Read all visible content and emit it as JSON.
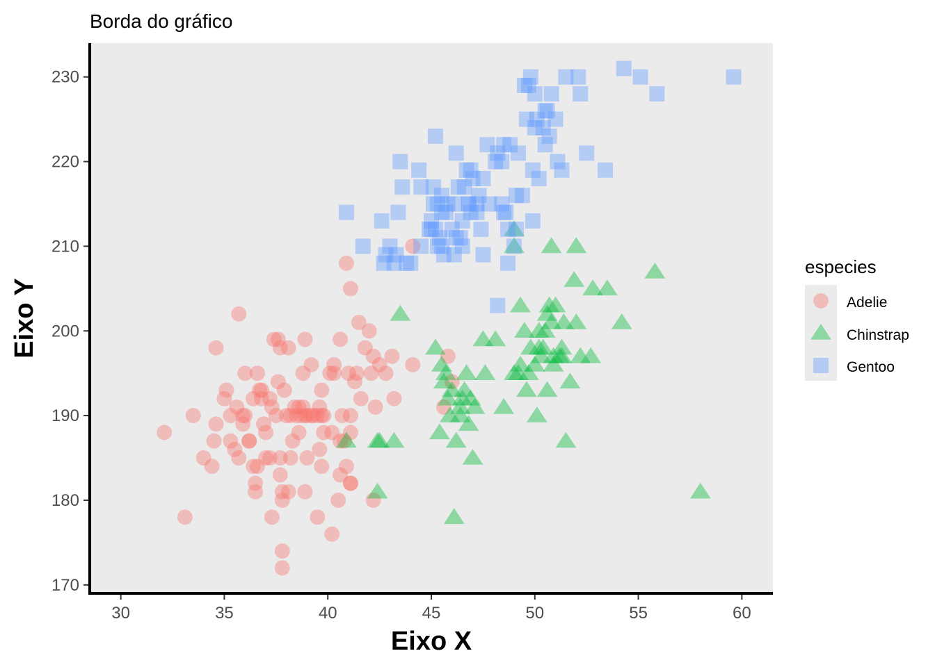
{
  "chart_data": {
    "type": "scatter",
    "title": "Borda do gráfico",
    "xlabel": "Eixo X",
    "ylabel": "Eixo Y",
    "xlim": [
      28.5,
      61.5
    ],
    "ylim": [
      169,
      234
    ],
    "x_ticks": [
      30,
      35,
      40,
      45,
      50,
      55,
      60
    ],
    "y_ticks": [
      170,
      180,
      190,
      200,
      210,
      220,
      230
    ],
    "grid": false,
    "panel_background": "#EBEBEB",
    "legend": {
      "title": "especies",
      "position": "right"
    },
    "series": [
      {
        "name": "Adelie",
        "marker": "circle",
        "color": "#F8766D",
        "points": [
          [
            32.1,
            188
          ],
          [
            33.1,
            178
          ],
          [
            33.5,
            190
          ],
          [
            34.0,
            185
          ],
          [
            34.4,
            184
          ],
          [
            34.5,
            187
          ],
          [
            34.6,
            198
          ],
          [
            34.6,
            189
          ],
          [
            35.0,
            192
          ],
          [
            35.1,
            193
          ],
          [
            35.3,
            187
          ],
          [
            35.3,
            190
          ],
          [
            35.5,
            186
          ],
          [
            35.6,
            191
          ],
          [
            35.7,
            185
          ],
          [
            35.7,
            202
          ],
          [
            35.9,
            190
          ],
          [
            35.9,
            189
          ],
          [
            36.0,
            195
          ],
          [
            36.2,
            187
          ],
          [
            36.2,
            187
          ],
          [
            36.0,
            190
          ],
          [
            36.4,
            184
          ],
          [
            36.5,
            181
          ],
          [
            36.5,
            182
          ],
          [
            36.6,
            195
          ],
          [
            36.6,
            184
          ],
          [
            36.7,
            193
          ],
          [
            36.8,
            193
          ],
          [
            36.9,
            189
          ],
          [
            37.0,
            185
          ],
          [
            37.2,
            185
          ],
          [
            37.3,
            178
          ],
          [
            37.3,
            191
          ],
          [
            37.4,
            199
          ],
          [
            37.6,
            194
          ],
          [
            37.7,
            198
          ],
          [
            37.7,
            185
          ],
          [
            37.8,
            180
          ],
          [
            37.8,
            181
          ],
          [
            37.7,
            183
          ],
          [
            37.8,
            174
          ],
          [
            37.8,
            172
          ],
          [
            37.9,
            193
          ],
          [
            37.6,
            199
          ],
          [
            38.0,
            190
          ],
          [
            38.1,
            198
          ],
          [
            38.2,
            190
          ],
          [
            38.2,
            185
          ],
          [
            38.3,
            187
          ],
          [
            38.5,
            190
          ],
          [
            38.6,
            191
          ],
          [
            38.6,
            188
          ],
          [
            38.7,
            190
          ],
          [
            38.8,
            195
          ],
          [
            38.8,
            191
          ],
          [
            38.9,
            190
          ],
          [
            38.9,
            181
          ],
          [
            39.0,
            190
          ],
          [
            39.0,
            185
          ],
          [
            38.9,
            199
          ],
          [
            39.2,
            196
          ],
          [
            39.3,
            190
          ],
          [
            39.5,
            178
          ],
          [
            39.6,
            186
          ],
          [
            39.6,
            191
          ],
          [
            39.7,
            193
          ],
          [
            39.7,
            184
          ],
          [
            39.8,
            190
          ],
          [
            39.8,
            188
          ],
          [
            40.2,
            188
          ],
          [
            40.2,
            176
          ],
          [
            40.3,
            196
          ],
          [
            40.3,
            195
          ],
          [
            40.5,
            180
          ],
          [
            40.6,
            187
          ],
          [
            40.6,
            183
          ],
          [
            40.7,
            190
          ],
          [
            40.8,
            187
          ],
          [
            40.9,
            184
          ],
          [
            40.9,
            208
          ],
          [
            41.0,
            195
          ],
          [
            41.1,
            182
          ],
          [
            41.1,
            205
          ],
          [
            41.1,
            190
          ],
          [
            41.1,
            188
          ],
          [
            41.3,
            194
          ],
          [
            41.4,
            195
          ],
          [
            41.5,
            201
          ],
          [
            41.6,
            192
          ],
          [
            41.8,
            198
          ],
          [
            42.0,
            200
          ],
          [
            42.1,
            195
          ],
          [
            42.2,
            197
          ],
          [
            42.2,
            180
          ],
          [
            42.3,
            191
          ],
          [
            42.5,
            196
          ],
          [
            42.8,
            195
          ],
          [
            43.1,
            197
          ],
          [
            43.2,
            192
          ],
          [
            44.1,
            196
          ],
          [
            44.1,
            210
          ],
          [
            45.8,
            197
          ],
          [
            46.0,
            194
          ],
          [
            45.6,
            191
          ],
          [
            37.0,
            188
          ],
          [
            36.4,
            192
          ],
          [
            39.7,
            190
          ],
          [
            38.1,
            181
          ],
          [
            37.5,
            190
          ],
          [
            36.8,
            192
          ],
          [
            39.2,
            190
          ],
          [
            38.4,
            191
          ],
          [
            40.1,
            195
          ],
          [
            37.2,
            192
          ],
          [
            39.5,
            190
          ],
          [
            41.1,
            182
          ],
          [
            40.6,
            199
          ]
        ]
      },
      {
        "name": "Chinstrap",
        "marker": "triangle",
        "color": "#00BA38",
        "points": [
          [
            40.9,
            187
          ],
          [
            42.4,
            181
          ],
          [
            42.4,
            187
          ],
          [
            42.5,
            187
          ],
          [
            43.2,
            187
          ],
          [
            43.5,
            202
          ],
          [
            45.2,
            198
          ],
          [
            45.4,
            188
          ],
          [
            45.5,
            196
          ],
          [
            45.6,
            194
          ],
          [
            45.7,
            195
          ],
          [
            45.9,
            190
          ],
          [
            46.0,
            193
          ],
          [
            46.1,
            178
          ],
          [
            46.2,
            187
          ],
          [
            46.4,
            190
          ],
          [
            46.5,
            192
          ],
          [
            46.6,
            193
          ],
          [
            46.7,
            195
          ],
          [
            46.8,
            189
          ],
          [
            46.9,
            192
          ],
          [
            47.0,
            185
          ],
          [
            47.5,
            199
          ],
          [
            47.6,
            195
          ],
          [
            48.1,
            199
          ],
          [
            48.5,
            191
          ],
          [
            49.0,
            195
          ],
          [
            49.2,
            195
          ],
          [
            49.3,
            203
          ],
          [
            49.5,
            200
          ],
          [
            49.6,
            193
          ],
          [
            49.7,
            195
          ],
          [
            49.8,
            198
          ],
          [
            50.0,
            196
          ],
          [
            50.1,
            190
          ],
          [
            50.2,
            198
          ],
          [
            50.3,
            197
          ],
          [
            50.5,
            200
          ],
          [
            50.6,
            193
          ],
          [
            50.7,
            203
          ],
          [
            50.8,
            201
          ],
          [
            50.9,
            196
          ],
          [
            51.0,
            203
          ],
          [
            51.3,
            197
          ],
          [
            51.4,
            201
          ],
          [
            51.5,
            187
          ],
          [
            51.7,
            194
          ],
          [
            51.9,
            206
          ],
          [
            52.0,
            210
          ],
          [
            52.0,
            201
          ],
          [
            52.2,
            197
          ],
          [
            52.7,
            197
          ],
          [
            52.8,
            205
          ],
          [
            53.5,
            205
          ],
          [
            54.2,
            201
          ],
          [
            55.8,
            207
          ],
          [
            58.0,
            181
          ],
          [
            49.0,
            212
          ],
          [
            49.0,
            210
          ],
          [
            50.8,
            210
          ],
          [
            45.8,
            192
          ],
          [
            46.4,
            191
          ],
          [
            47.1,
            191
          ],
          [
            50.4,
            198
          ],
          [
            51.3,
            198
          ],
          [
            50.9,
            197
          ],
          [
            49.3,
            196
          ],
          [
            50.6,
            202
          ],
          [
            50.2,
            200
          ],
          [
            51.2,
            197
          ]
        ]
      },
      {
        "name": "Gentoo",
        "marker": "square",
        "color": "#619CFF",
        "points": [
          [
            40.9,
            214
          ],
          [
            41.7,
            210
          ],
          [
            42.6,
            213
          ],
          [
            42.7,
            208
          ],
          [
            42.8,
            209
          ],
          [
            43.2,
            208
          ],
          [
            43.3,
            209
          ],
          [
            43.4,
            214
          ],
          [
            43.5,
            220
          ],
          [
            43.6,
            217
          ],
          [
            43.8,
            208
          ],
          [
            44.0,
            208
          ],
          [
            44.4,
            219
          ],
          [
            44.5,
            217
          ],
          [
            45.0,
            213
          ],
          [
            45.1,
            215
          ],
          [
            45.2,
            212
          ],
          [
            45.3,
            215
          ],
          [
            45.4,
            211
          ],
          [
            45.5,
            210
          ],
          [
            45.5,
            216
          ],
          [
            45.7,
            214
          ],
          [
            45.2,
            223
          ],
          [
            45.8,
            215
          ],
          [
            46.1,
            215
          ],
          [
            46.2,
            221
          ],
          [
            46.3,
            217
          ],
          [
            46.4,
            211
          ],
          [
            46.5,
            210
          ],
          [
            46.6,
            217
          ],
          [
            46.7,
            219
          ],
          [
            46.8,
            215
          ],
          [
            46.9,
            214
          ],
          [
            47.2,
            214
          ],
          [
            47.3,
            216
          ],
          [
            47.4,
            212
          ],
          [
            47.5,
            209
          ],
          [
            47.7,
            222
          ],
          [
            47.8,
            215
          ],
          [
            48.1,
            220
          ],
          [
            48.2,
            221
          ],
          [
            48.4,
            220
          ],
          [
            48.5,
            222
          ],
          [
            48.6,
            214
          ],
          [
            48.7,
            212
          ],
          [
            49.0,
            210
          ],
          [
            49.1,
            212
          ],
          [
            49.2,
            221
          ],
          [
            49.4,
            216
          ],
          [
            49.5,
            229
          ],
          [
            49.6,
            225
          ],
          [
            49.8,
            230
          ],
          [
            49.9,
            213
          ],
          [
            50.0,
            224
          ],
          [
            50.1,
            225
          ],
          [
            50.2,
            218
          ],
          [
            50.4,
            224
          ],
          [
            50.5,
            222
          ],
          [
            50.7,
            223
          ],
          [
            50.8,
            228
          ],
          [
            51.1,
            220
          ],
          [
            51.3,
            219
          ],
          [
            51.5,
            230
          ],
          [
            52.1,
            230
          ],
          [
            52.2,
            228
          ],
          [
            52.5,
            221
          ],
          [
            53.4,
            219
          ],
          [
            54.3,
            231
          ],
          [
            55.1,
            230
          ],
          [
            55.9,
            228
          ],
          [
            59.6,
            230
          ],
          [
            48.2,
            203
          ],
          [
            45.1,
            217
          ],
          [
            46.5,
            213
          ],
          [
            48.8,
            222
          ],
          [
            47.5,
            218
          ],
          [
            45.5,
            214
          ],
          [
            44.9,
            212
          ],
          [
            46.0,
            212
          ],
          [
            49.1,
            216
          ],
          [
            48.4,
            215
          ],
          [
            47.0,
            218
          ],
          [
            46.9,
            219
          ],
          [
            50.5,
            226
          ],
          [
            49.9,
            219
          ],
          [
            45.6,
            209
          ],
          [
            48.5,
            214
          ],
          [
            47.2,
            215
          ],
          [
            46.1,
            209
          ],
          [
            45.3,
            210
          ],
          [
            50.0,
            228
          ],
          [
            44.5,
            210
          ],
          [
            46.8,
            215
          ],
          [
            48.7,
            208
          ],
          [
            49.7,
            229
          ],
          [
            51.0,
            225
          ],
          [
            50.6,
            226
          ],
          [
            43.0,
            210
          ],
          [
            45.0,
            212
          ],
          [
            46.2,
            211
          ]
        ]
      }
    ]
  }
}
